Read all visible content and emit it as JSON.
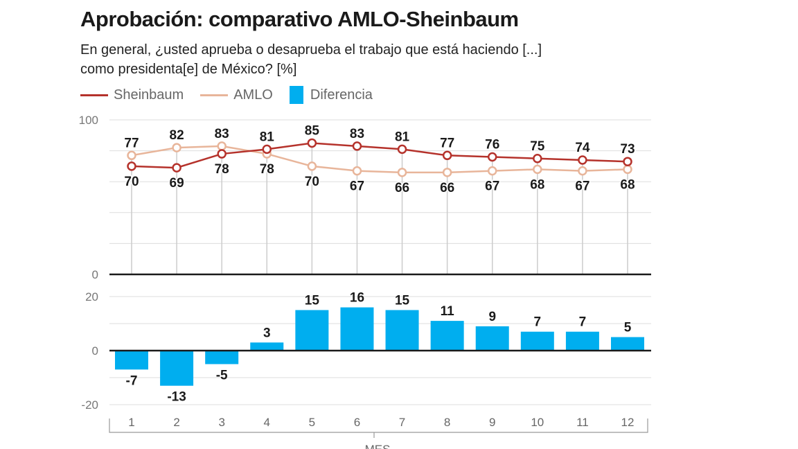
{
  "title": "Aprobación: comparativo AMLO-Sheinbaum",
  "subtitle_line1": "En general, ¿usted aprueba o desaprueba el trabajo que está haciendo [...]",
  "subtitle_line2": "como presidenta[e] de México?  [%]",
  "legend": [
    {
      "name": "Sheinbaum",
      "color": "#b5322b"
    },
    {
      "name": "AMLO",
      "color": "#e8b59a"
    },
    {
      "name": "Diferencia",
      "color": "#00aeef"
    }
  ],
  "chart_data": [
    {
      "type": "line",
      "x": [
        1,
        2,
        3,
        4,
        5,
        6,
        7,
        8,
        9,
        10,
        11,
        12
      ],
      "ylim": [
        0,
        100
      ],
      "yticks": [
        0,
        100
      ],
      "grid": true,
      "legend_placement": "top-left",
      "series": [
        {
          "name": "Sheinbaum",
          "color": "#b5322b",
          "values": [
            70,
            69,
            78,
            81,
            85,
            83,
            81,
            77,
            76,
            75,
            74,
            73
          ]
        },
        {
          "name": "AMLO",
          "color": "#e8b59a",
          "values": [
            77,
            82,
            83,
            78,
            70,
            67,
            66,
            66,
            67,
            68,
            67,
            68
          ]
        }
      ]
    },
    {
      "type": "bar",
      "categories": [
        "1",
        "2",
        "3",
        "4",
        "5",
        "6",
        "7",
        "8",
        "9",
        "10",
        "11",
        "12"
      ],
      "series": [
        {
          "name": "Diferencia",
          "color": "#00aeef",
          "values": [
            -7,
            -13,
            -5,
            3,
            15,
            16,
            15,
            11,
            9,
            7,
            7,
            5
          ]
        }
      ],
      "ylim": [
        -20,
        20
      ],
      "yticks": [
        -20,
        0,
        20
      ],
      "xlabel": "MES",
      "grid": true
    }
  ]
}
